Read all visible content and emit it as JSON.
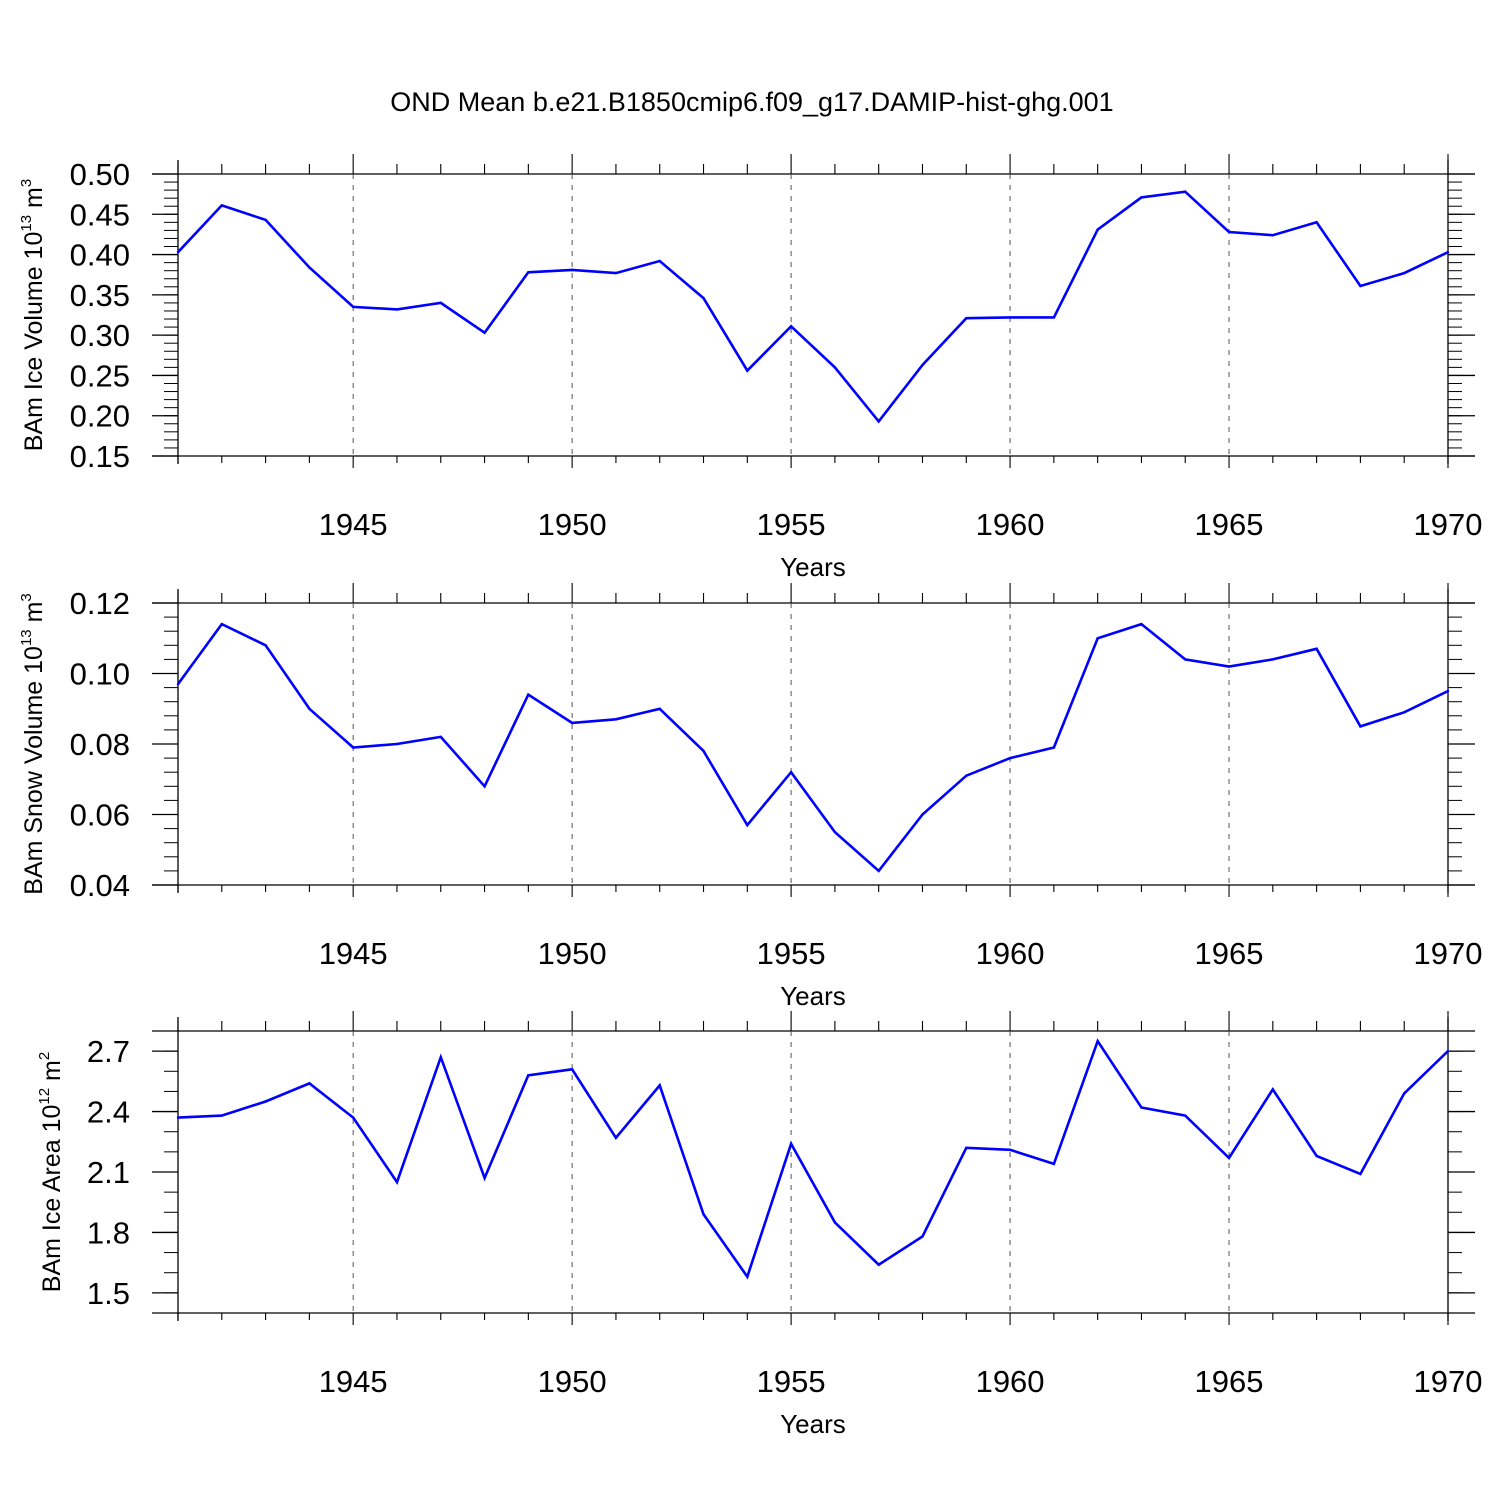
{
  "title": "OND Mean b.e21.B1850cmip6.f09_g17.DAMIP-hist-ghg.001",
  "colors": {
    "line": "#0000ff",
    "axis": "#000000",
    "grid": "#555555"
  },
  "chart_data": [
    {
      "type": "line",
      "ylabel_main": "BAm Ice Volume 10",
      "ylabel_exp": "13",
      "ylabel_unit": " m",
      "ylabel_unit_exp": "3",
      "xlabel": "Years",
      "xlim": [
        1941,
        1970
      ],
      "ylim": [
        0.15,
        0.5
      ],
      "ymajor_step": 0.05,
      "yminor_step": 0.01,
      "ytick_labels": [
        "0.15",
        "0.20",
        "0.25",
        "0.30",
        "0.35",
        "0.40",
        "0.45",
        "0.50"
      ],
      "xtick_labels": [
        "1945",
        "1950",
        "1955",
        "1960",
        "1965",
        "1970"
      ],
      "x": [
        1941,
        1942,
        1943,
        1944,
        1945,
        1946,
        1947,
        1948,
        1949,
        1950,
        1951,
        1952,
        1953,
        1954,
        1955,
        1956,
        1957,
        1958,
        1959,
        1960,
        1961,
        1962,
        1963,
        1964,
        1965,
        1966,
        1967,
        1968,
        1969,
        1970
      ],
      "series": [
        {
          "name": "BAm Ice Volume",
          "values": [
            0.403,
            0.461,
            0.443,
            0.384,
            0.335,
            0.332,
            0.34,
            0.303,
            0.378,
            0.381,
            0.377,
            0.392,
            0.346,
            0.256,
            0.311,
            0.26,
            0.193,
            0.263,
            0.321,
            0.322,
            0.322,
            0.431,
            0.471,
            0.478,
            0.428,
            0.424,
            0.44,
            0.361,
            0.377,
            0.403
          ]
        }
      ]
    },
    {
      "type": "line",
      "ylabel_main": "BAm Snow Volume 10",
      "ylabel_exp": "13",
      "ylabel_unit": " m",
      "ylabel_unit_exp": "3",
      "xlabel": "Years",
      "xlim": [
        1941,
        1970
      ],
      "ylim": [
        0.04,
        0.12
      ],
      "ymajor_step": 0.02,
      "yminor_step": 0.004,
      "ytick_labels": [
        "0.04",
        "0.06",
        "0.08",
        "0.10",
        "0.12"
      ],
      "xtick_labels": [
        "1945",
        "1950",
        "1955",
        "1960",
        "1965",
        "1970"
      ],
      "x": [
        1941,
        1942,
        1943,
        1944,
        1945,
        1946,
        1947,
        1948,
        1949,
        1950,
        1951,
        1952,
        1953,
        1954,
        1955,
        1956,
        1957,
        1958,
        1959,
        1960,
        1961,
        1962,
        1963,
        1964,
        1965,
        1966,
        1967,
        1968,
        1969,
        1970
      ],
      "series": [
        {
          "name": "BAm Snow Volume",
          "values": [
            0.097,
            0.114,
            0.108,
            0.09,
            0.079,
            0.08,
            0.082,
            0.068,
            0.094,
            0.086,
            0.087,
            0.09,
            0.078,
            0.057,
            0.072,
            0.055,
            0.044,
            0.06,
            0.071,
            0.076,
            0.079,
            0.11,
            0.114,
            0.104,
            0.102,
            0.104,
            0.107,
            0.085,
            0.089,
            0.095
          ]
        }
      ]
    },
    {
      "type": "line",
      "ylabel_main": "BAm Ice Area 10",
      "ylabel_exp": "12",
      "ylabel_unit": " m",
      "ylabel_unit_exp": "2",
      "xlabel": "Years",
      "xlim": [
        1941,
        1970
      ],
      "ylim": [
        1.4,
        2.8
      ],
      "ymajor_step": 0.3,
      "yminor_step": 0.1,
      "ytick_labels": [
        "1.5",
        "1.8",
        "2.1",
        "2.4",
        "2.7"
      ],
      "xtick_labels": [
        "1945",
        "1950",
        "1955",
        "1960",
        "1965",
        "1970"
      ],
      "x": [
        1941,
        1942,
        1943,
        1944,
        1945,
        1946,
        1947,
        1948,
        1949,
        1950,
        1951,
        1952,
        1953,
        1954,
        1955,
        1956,
        1957,
        1958,
        1959,
        1960,
        1961,
        1962,
        1963,
        1964,
        1965,
        1966,
        1967,
        1968,
        1969,
        1970
      ],
      "series": [
        {
          "name": "BAm Ice Area",
          "values": [
            2.37,
            2.38,
            2.45,
            2.54,
            2.37,
            2.05,
            2.67,
            2.07,
            2.58,
            2.61,
            2.27,
            2.53,
            1.89,
            1.58,
            2.24,
            1.85,
            1.64,
            1.78,
            2.22,
            2.21,
            2.14,
            2.75,
            2.42,
            2.38,
            2.17,
            2.51,
            2.18,
            2.09,
            2.49,
            2.7
          ]
        }
      ]
    }
  ]
}
